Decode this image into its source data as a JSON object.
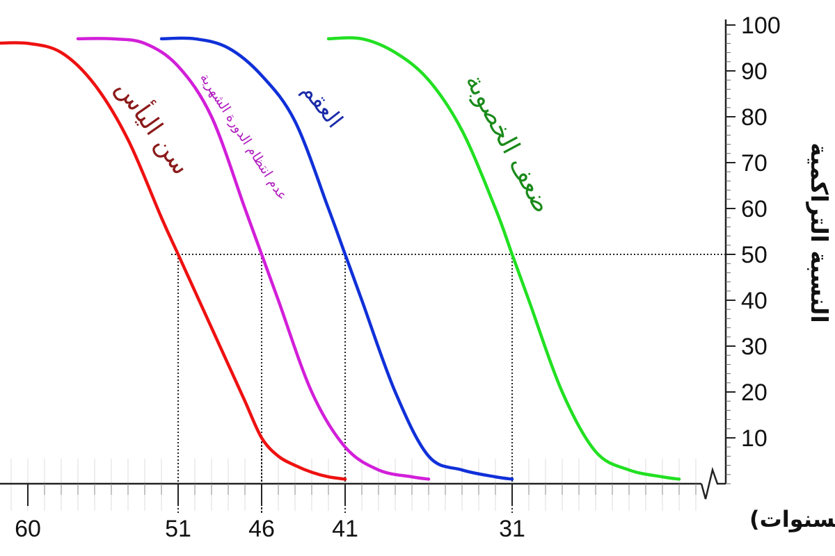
{
  "chart_data": {
    "type": "line",
    "xlabel": "السن (بِالسنوات)",
    "ylabel": "النسبة التراكمية",
    "x_ticks": [
      60,
      51,
      46,
      41,
      31
    ],
    "y_ticks": [
      10,
      20,
      30,
      40,
      50,
      60,
      70,
      80,
      90,
      100
    ],
    "xlim": [
      61.5,
      20
    ],
    "ylim": [
      0,
      100
    ],
    "reference_y": 50,
    "series": [
      {
        "name": "سن اليأس",
        "color": "#ee1111",
        "label_color": "#8b1a1a",
        "x": [
          62,
          60,
          58,
          56,
          54,
          52,
          51,
          50,
          49,
          48,
          47,
          46,
          45,
          44,
          43,
          42,
          41
        ],
        "y": [
          96,
          96,
          94,
          87,
          75,
          58,
          50,
          42,
          34,
          26,
          18,
          10,
          6,
          4,
          2.5,
          1.5,
          1
        ]
      },
      {
        "name": "عدم انتظام الدورة الشهرية",
        "color": "#d21fd9",
        "label_color": "#b01cbf",
        "x": [
          57,
          55,
          53,
          51,
          49,
          47,
          46,
          45,
          43,
          41,
          39,
          37,
          36
        ],
        "y": [
          97,
          97,
          96,
          91,
          80,
          60,
          50,
          40,
          20,
          8,
          3,
          1.5,
          1
        ]
      },
      {
        "name": "العقم",
        "color": "#1030d8",
        "label_color": "#1a2aa8",
        "x": [
          52,
          50,
          48,
          46,
          44,
          42,
          41,
          40,
          38,
          36,
          34,
          32,
          31
        ],
        "y": [
          97,
          97,
          95,
          89,
          79,
          60,
          50,
          40,
          20,
          6,
          3,
          1.5,
          1
        ]
      },
      {
        "name": "ضعف الخصوبة",
        "color": "#22e022",
        "label_color": "#1a8a1a",
        "x": [
          42,
          40,
          38,
          36,
          34,
          32,
          31,
          30,
          28,
          26,
          24,
          22,
          21
        ],
        "y": [
          97,
          97,
          94,
          88,
          77,
          60,
          50,
          40,
          20,
          7,
          3,
          1.5,
          1
        ]
      }
    ]
  }
}
